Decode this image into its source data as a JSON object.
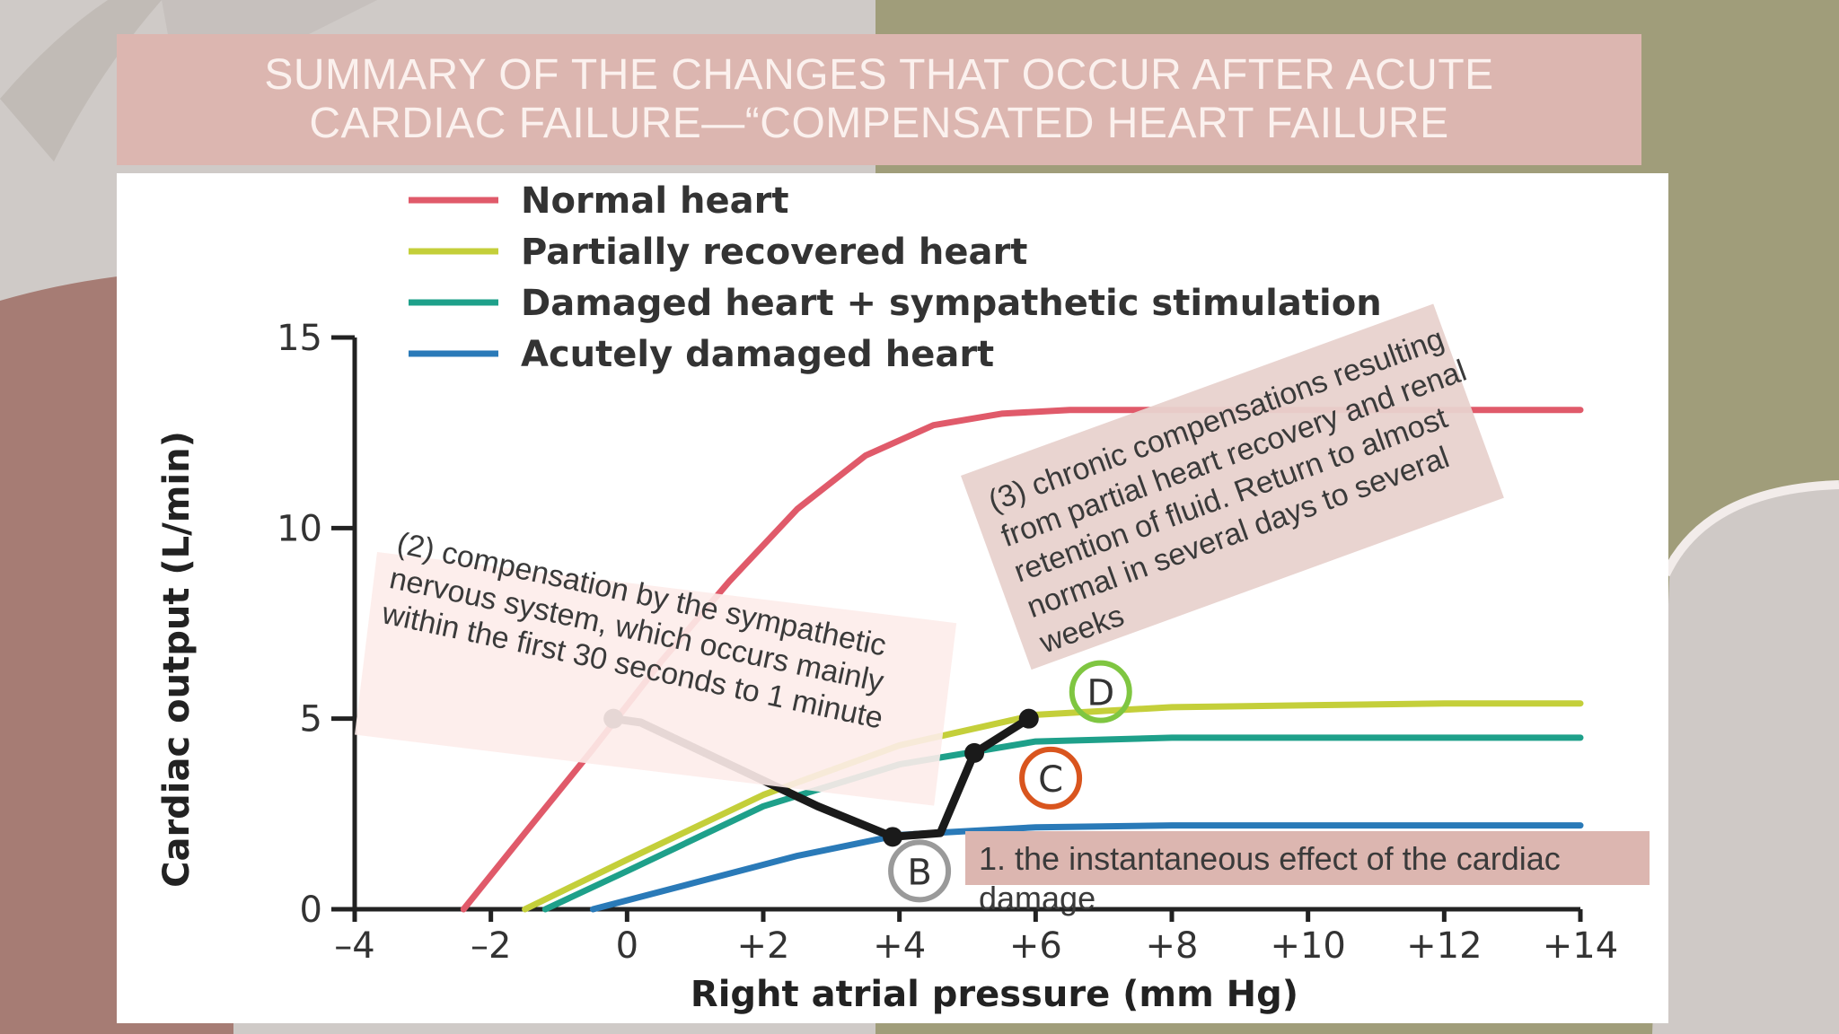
{
  "slide": {
    "title_line1": "SUMMARY OF THE CHANGES THAT OCCUR AFTER ACUTE",
    "title_line2": "CARDIAC FAILURE—“COMPENSATED HEART FAILURE",
    "colors": {
      "title_band": "#dcb6b0",
      "background_olive": "#a09d7a",
      "background_mauve": "#a67c74",
      "background_grey": "#cfcac7"
    }
  },
  "annotations": {
    "note1": "1. the instantaneous effect of the cardiac damage",
    "note2": "(2) compensation by the sympathetic nervous system, which occurs mainly within the first 30 seconds to 1 minute",
    "note3": "(3) chronic compensations resulting from partial heart recovery and renal retention of fluid. Return to almost normal in several days to several weeks"
  },
  "chart_data": {
    "type": "line",
    "xlabel": "Right atrial pressure (mm Hg)",
    "ylabel": "Cardiac output (L/min)",
    "xlim": [
      -4,
      14
    ],
    "ylim": [
      0,
      15
    ],
    "x_ticks": [
      "–4",
      "–2",
      "0",
      "+2",
      "+4",
      "+6",
      "+8",
      "+10",
      "+12",
      "+14"
    ],
    "x_tick_values": [
      -4,
      -2,
      0,
      2,
      4,
      6,
      8,
      10,
      12,
      14
    ],
    "y_ticks": [
      "0",
      "5",
      "10",
      "15"
    ],
    "y_tick_values": [
      0,
      5,
      10,
      15
    ],
    "legend_position": "top",
    "series": [
      {
        "name": "Normal heart",
        "color": "#e05a6a",
        "x": [
          -2.4,
          -1.5,
          -0.5,
          0.5,
          1.5,
          2.5,
          3.5,
          4.5,
          5.5,
          6.5,
          8,
          10,
          12,
          14
        ],
        "y": [
          0,
          2,
          4.2,
          6.5,
          8.6,
          10.5,
          11.9,
          12.7,
          13,
          13.1,
          13.1,
          13.1,
          13.1,
          13.1
        ]
      },
      {
        "name": "Partially recovered heart",
        "color": "#c4cf3a",
        "x": [
          -1.5,
          0,
          2,
          4,
          6,
          8,
          10,
          12,
          14
        ],
        "y": [
          0,
          1.3,
          3.0,
          4.3,
          5.1,
          5.3,
          5.35,
          5.4,
          5.4
        ]
      },
      {
        "name": "Damaged heart + sympathetic stimulation",
        "color": "#1ea08a",
        "x": [
          -1.2,
          0,
          2,
          4,
          6,
          8,
          10,
          12,
          14
        ],
        "y": [
          0,
          1.0,
          2.7,
          3.8,
          4.4,
          4.5,
          4.5,
          4.5,
          4.5
        ]
      },
      {
        "name": "Acutely damaged heart",
        "color": "#2a7ab8",
        "x": [
          -0.5,
          1,
          2.5,
          4,
          6,
          8,
          10,
          12,
          14
        ],
        "y": [
          0,
          0.7,
          1.4,
          1.95,
          2.15,
          2.2,
          2.2,
          2.2,
          2.2
        ]
      }
    ],
    "path": {
      "x": [
        -0.2,
        0.2,
        1.5,
        2.8,
        3.9,
        4.6,
        5.1,
        5.9
      ],
      "y": [
        5.0,
        4.9,
        3.8,
        2.7,
        1.9,
        2.0,
        4.1,
        5.0
      ]
    },
    "points": [
      {
        "label": "B",
        "x": 3.9,
        "y": 1.9,
        "ring_color": "#9a9a9a"
      },
      {
        "label": "C",
        "x": 5.1,
        "y": 4.1,
        "ring_color": "#d9551e"
      },
      {
        "label": "D",
        "x": 5.9,
        "y": 5.0,
        "ring_color": "#7fc641"
      }
    ]
  }
}
